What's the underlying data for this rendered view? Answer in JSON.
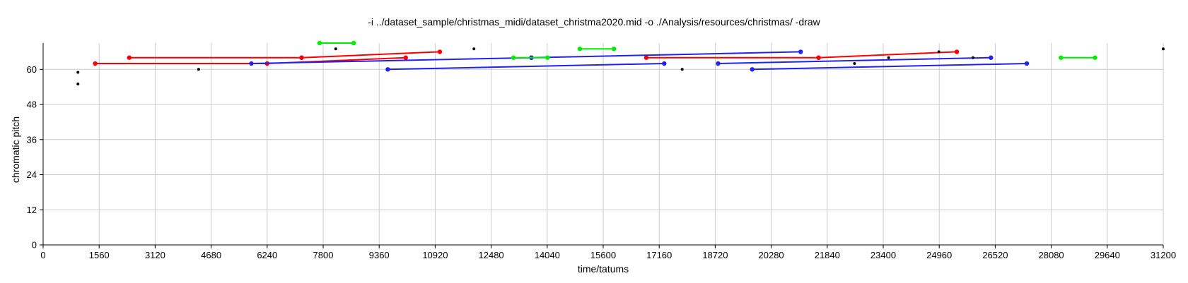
{
  "chart_data": {
    "type": "line",
    "title": "-i ../dataset_sample/christmas_midi/dataset_christma2020.mid -o ./Analysis/resources/christmas/ -draw",
    "xlabel": "time/tatums",
    "ylabel": "chromatic pitch",
    "xlim": [
      0,
      31200
    ],
    "ylim": [
      0,
      69
    ],
    "xticks": [
      0,
      1560,
      3120,
      4680,
      6240,
      7800,
      9360,
      10920,
      12480,
      14040,
      15600,
      17160,
      18720,
      20280,
      21840,
      23400,
      24960,
      26520,
      28080,
      29640,
      31200
    ],
    "yticks": [
      0,
      12,
      24,
      36,
      48,
      60
    ],
    "grid": true,
    "colors": {
      "red": "#ff0000",
      "blue": "#2222ee",
      "green": "#00ee00",
      "black": "#000000",
      "grid": "#cccccc"
    },
    "series": [
      {
        "color": "red",
        "segments": [
          {
            "x1": 1450,
            "y1": 62,
            "x2": 6240,
            "y2": 62
          },
          {
            "x1": 2400,
            "y1": 64,
            "x2": 7200,
            "y2": 64
          },
          {
            "x1": 6240,
            "y1": 62,
            "x2": 10100,
            "y2": 64
          },
          {
            "x1": 7200,
            "y1": 64,
            "x2": 11050,
            "y2": 66
          },
          {
            "x1": 16800,
            "y1": 64,
            "x2": 21600,
            "y2": 64
          },
          {
            "x1": 21600,
            "y1": 64,
            "x2": 25450,
            "y2": 66
          }
        ]
      },
      {
        "color": "blue",
        "segments": [
          {
            "x1": 5800,
            "y1": 62,
            "x2": 13600,
            "y2": 64
          },
          {
            "x1": 9600,
            "y1": 60,
            "x2": 17300,
            "y2": 62
          },
          {
            "x1": 13600,
            "y1": 64,
            "x2": 21100,
            "y2": 66
          },
          {
            "x1": 18800,
            "y1": 62,
            "x2": 26400,
            "y2": 64
          },
          {
            "x1": 19750,
            "y1": 60,
            "x2": 27400,
            "y2": 62
          }
        ]
      },
      {
        "color": "green",
        "segments": [
          {
            "x1": 7700,
            "y1": 69,
            "x2": 8650,
            "y2": 69
          },
          {
            "x1": 13100,
            "y1": 64,
            "x2": 14050,
            "y2": 64
          },
          {
            "x1": 14950,
            "y1": 67,
            "x2": 15900,
            "y2": 67
          },
          {
            "x1": 28350,
            "y1": 64,
            "x2": 29300,
            "y2": 64
          }
        ]
      },
      {
        "color": "black",
        "points": [
          {
            "x": 970,
            "y": 59
          },
          {
            "x": 970,
            "y": 55
          },
          {
            "x": 4330,
            "y": 60
          },
          {
            "x": 8150,
            "y": 67
          },
          {
            "x": 12000,
            "y": 67
          },
          {
            "x": 17800,
            "y": 60
          },
          {
            "x": 22600,
            "y": 62
          },
          {
            "x": 23550,
            "y": 64
          },
          {
            "x": 24950,
            "y": 66
          },
          {
            "x": 25900,
            "y": 64
          },
          {
            "x": 31200,
            "y": 67
          }
        ]
      }
    ]
  }
}
